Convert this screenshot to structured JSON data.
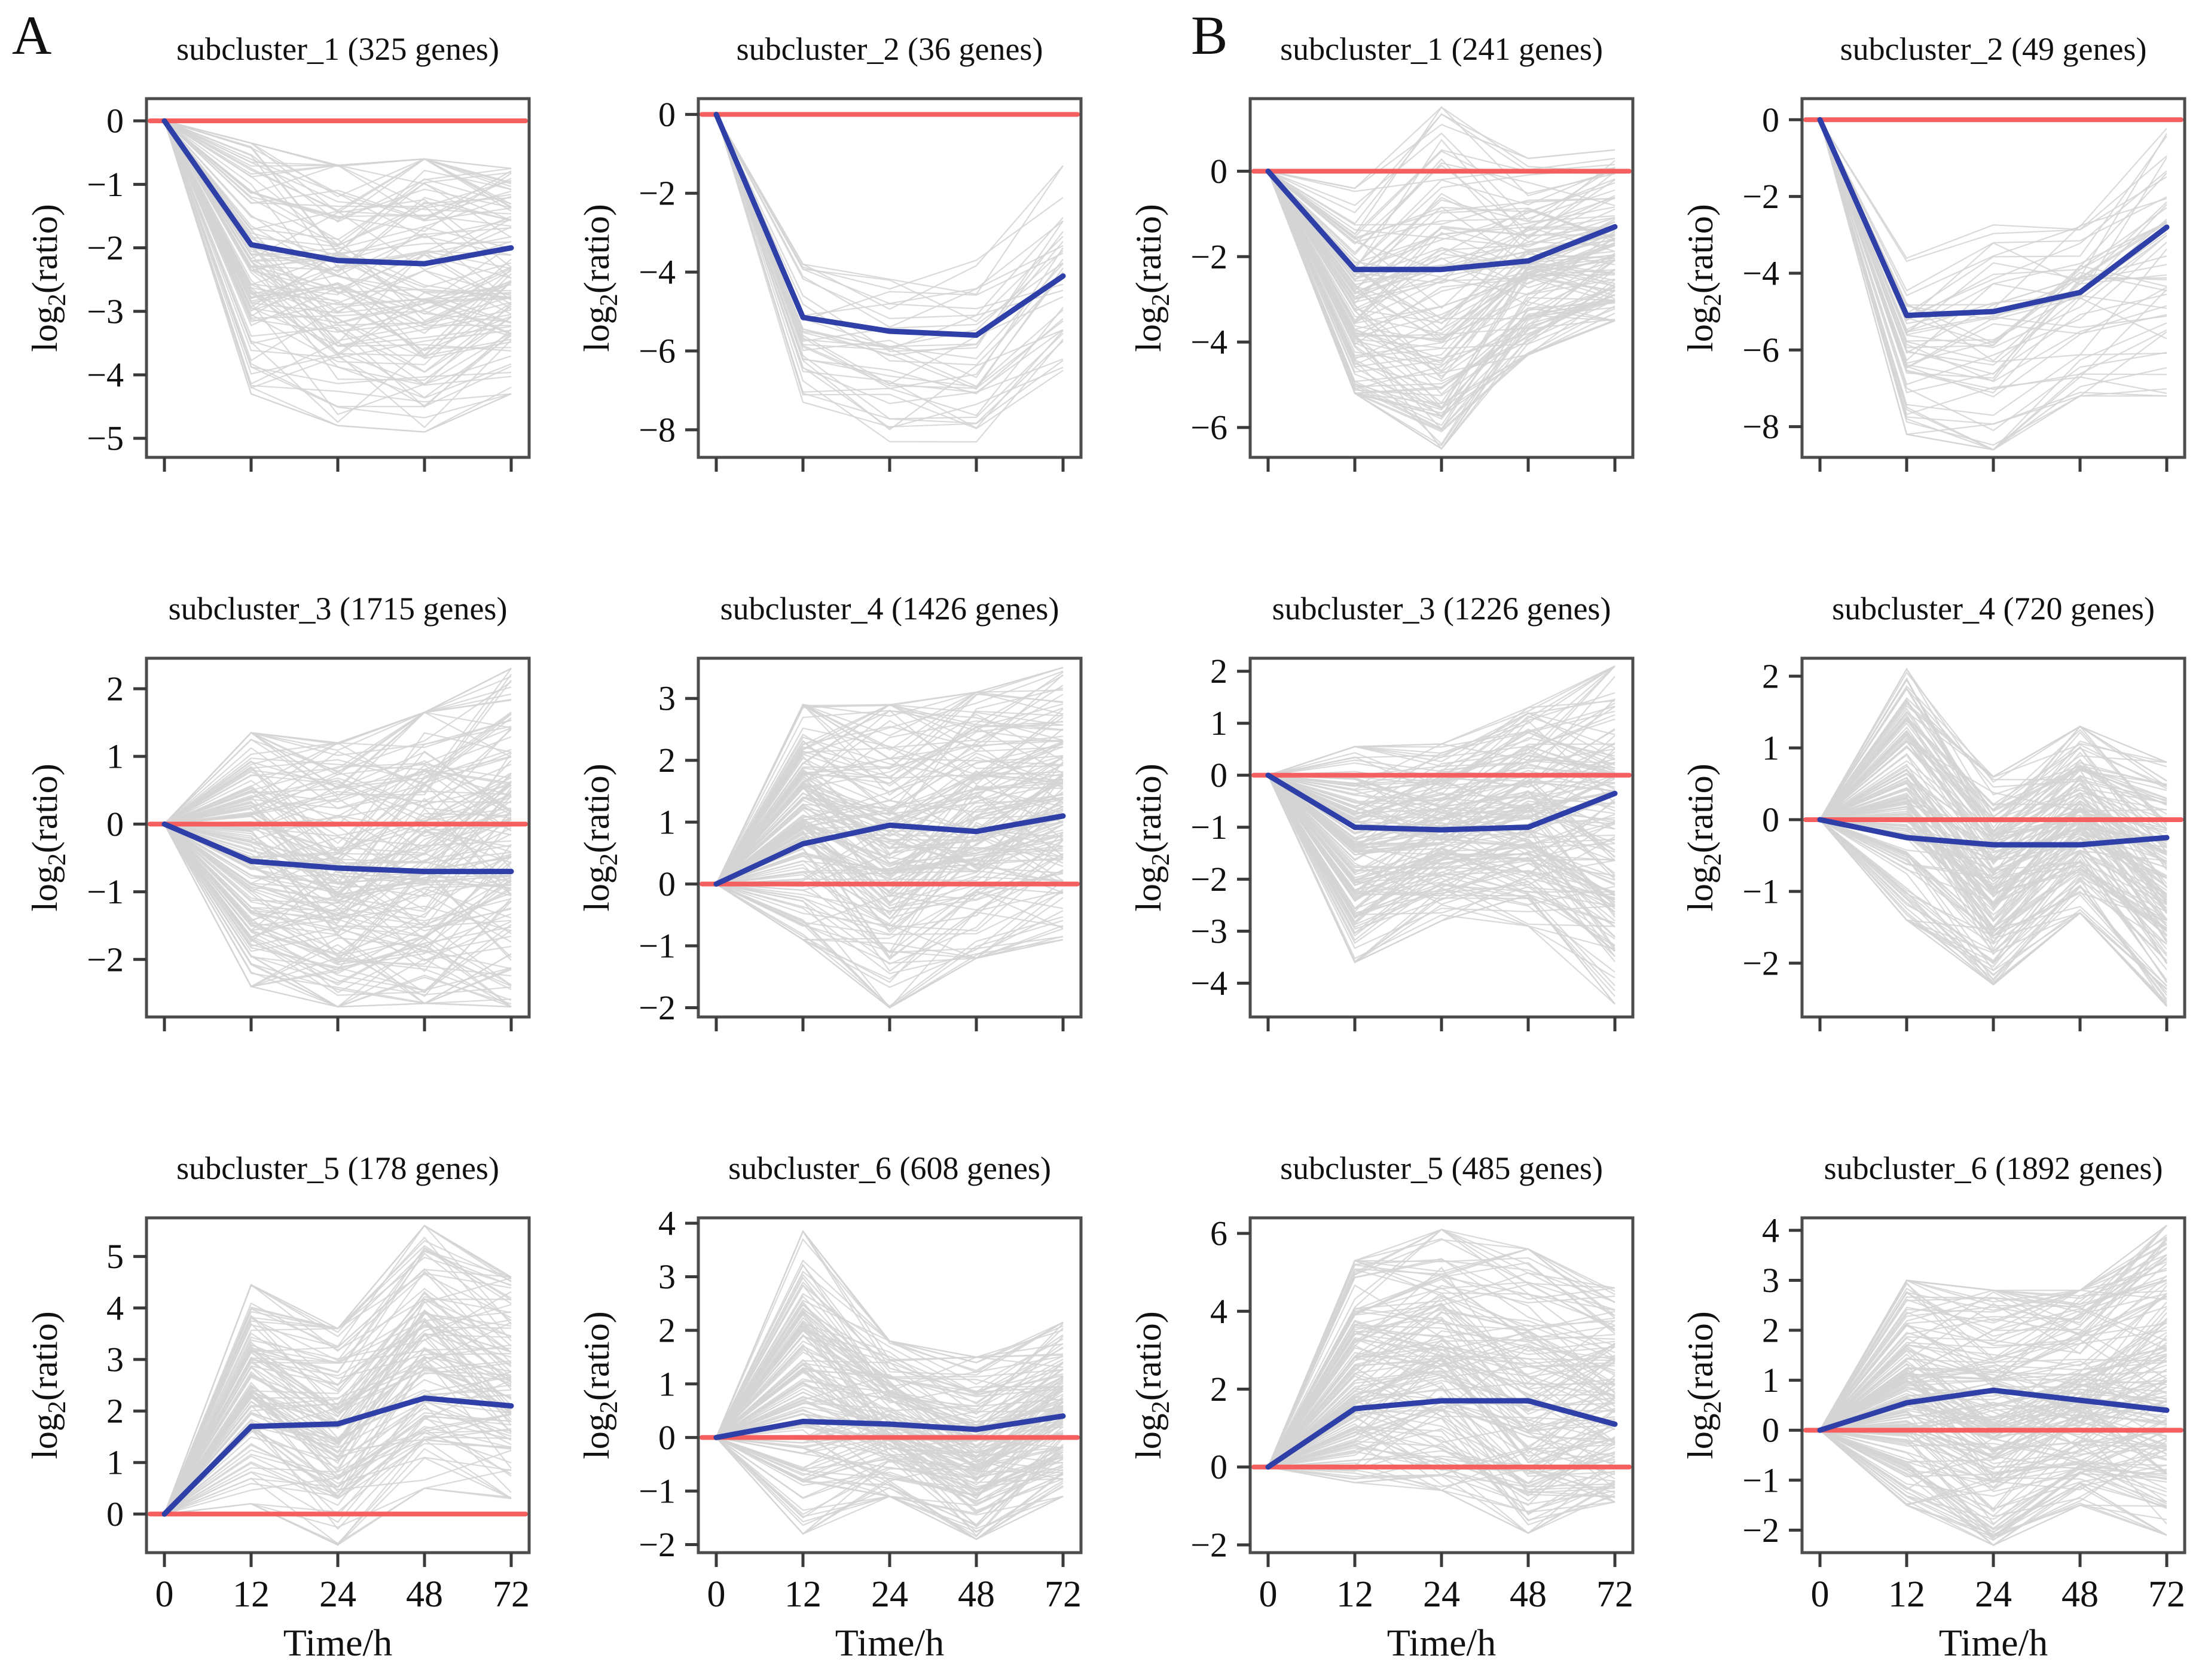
{
  "figure": {
    "panel_a_label": "A",
    "panel_b_label": "B",
    "xlabel": "Time/h",
    "ylabel": {
      "pre": "log",
      "sub": "2",
      "post": "(ratio)"
    },
    "x_ticks": [
      0,
      12,
      24,
      48,
      72
    ],
    "colors": {
      "mean_line": "#2e3fa8",
      "baseline": "#f65f5f",
      "gene_lines": "#d4d4d4",
      "box_border": "#4d4d4d",
      "tick": "#3a3a3a",
      "text": "#111111"
    }
  },
  "chart_data": [
    {
      "type": "line",
      "panel": "A",
      "subcluster": "subcluster_1",
      "gene_count": 325,
      "title": "subcluster_1 (325 genes)",
      "x": [
        0,
        12,
        24,
        48,
        72
      ],
      "xlabel": "Time/h",
      "ylabel": "log2(ratio)",
      "yticks": [
        0,
        -1,
        -2,
        -3,
        -4,
        -5
      ],
      "ylim": [
        -5.3,
        0.35
      ],
      "series": [
        {
          "name": "cluster mean",
          "values": [
            0,
            -1.95,
            -2.2,
            -2.25,
            -2.0
          ]
        },
        {
          "name": "baseline",
          "values": [
            0,
            0,
            0,
            0,
            0
          ]
        }
      ],
      "env_min": [
        0,
        -4.3,
        -4.8,
        -4.9,
        -4.3
      ],
      "env_max": [
        0,
        -0.35,
        -0.7,
        -0.6,
        -0.75
      ],
      "n_lines": 110
    },
    {
      "type": "line",
      "panel": "A",
      "subcluster": "subcluster_2",
      "gene_count": 36,
      "title": "subcluster_2 (36 genes)",
      "x": [
        0,
        12,
        24,
        48,
        72
      ],
      "xlabel": "Time/h",
      "ylabel": "log2(ratio)",
      "yticks": [
        0,
        -2,
        -4,
        -6,
        -8
      ],
      "ylim": [
        -8.7,
        0.4
      ],
      "series": [
        {
          "name": "cluster mean",
          "values": [
            0,
            -5.15,
            -5.5,
            -5.6,
            -4.1
          ]
        },
        {
          "name": "baseline",
          "values": [
            0,
            0,
            0,
            0,
            0
          ]
        }
      ],
      "env_min": [
        0,
        -7.3,
        -8.3,
        -8.4,
        -6.9
      ],
      "env_max": [
        0,
        -3.8,
        -3.9,
        -3.7,
        -1.3
      ],
      "n_lines": 36
    },
    {
      "type": "line",
      "panel": "A",
      "subcluster": "subcluster_3",
      "gene_count": 1715,
      "title": "subcluster_3 (1715 genes)",
      "x": [
        0,
        12,
        24,
        48,
        72
      ],
      "xlabel": "Time/h",
      "ylabel": "log2(ratio)",
      "yticks": [
        2,
        1,
        0,
        -1,
        -2
      ],
      "ylim": [
        -2.85,
        2.45
      ],
      "series": [
        {
          "name": "cluster mean",
          "values": [
            0,
            -0.55,
            -0.65,
            -0.7,
            -0.7
          ]
        },
        {
          "name": "baseline",
          "values": [
            0,
            0,
            0,
            0,
            0
          ]
        }
      ],
      "env_min": [
        0,
        -2.4,
        -2.7,
        -2.65,
        -2.7
      ],
      "env_max": [
        0,
        1.35,
        1.2,
        1.65,
        2.3
      ],
      "n_lines": 160
    },
    {
      "type": "line",
      "panel": "A",
      "subcluster": "subcluster_4",
      "gene_count": 1426,
      "title": "subcluster_4 (1426 genes)",
      "x": [
        0,
        12,
        24,
        48,
        72
      ],
      "xlabel": "Time/h",
      "ylabel": "log2(ratio)",
      "yticks": [
        3,
        2,
        1,
        0,
        -1,
        -2
      ],
      "ylim": [
        -2.15,
        3.65
      ],
      "series": [
        {
          "name": "cluster mean",
          "values": [
            0,
            0.65,
            0.95,
            0.85,
            1.1
          ]
        },
        {
          "name": "baseline",
          "values": [
            0,
            0,
            0,
            0,
            0
          ]
        }
      ],
      "env_min": [
        0,
        -0.9,
        -2.0,
        -1.2,
        -0.9
      ],
      "env_max": [
        0,
        2.9,
        2.9,
        3.1,
        3.5
      ],
      "n_lines": 160
    },
    {
      "type": "line",
      "panel": "A",
      "subcluster": "subcluster_5",
      "gene_count": 178,
      "title": "subcluster_5 (178 genes)",
      "x": [
        0,
        12,
        24,
        48,
        72
      ],
      "xlabel": "Time/h",
      "ylabel": "log2(ratio)",
      "yticks": [
        5,
        4,
        3,
        2,
        1,
        0
      ],
      "ylim": [
        -0.75,
        5.75
      ],
      "series": [
        {
          "name": "cluster mean",
          "values": [
            0,
            1.7,
            1.75,
            2.25,
            2.1
          ]
        },
        {
          "name": "baseline",
          "values": [
            0,
            0,
            0,
            0,
            0
          ]
        }
      ],
      "env_min": [
        0,
        0.2,
        -0.6,
        0.5,
        0.3
      ],
      "env_max": [
        0,
        4.45,
        3.6,
        5.6,
        4.6
      ],
      "n_lines": 110
    },
    {
      "type": "line",
      "panel": "A",
      "subcluster": "subcluster_6",
      "gene_count": 608,
      "title": "subcluster_6 (608 genes)",
      "x": [
        0,
        12,
        24,
        48,
        72
      ],
      "xlabel": "Time/h",
      "ylabel": "log2(ratio)",
      "yticks": [
        4,
        3,
        2,
        1,
        0,
        -1,
        -2
      ],
      "ylim": [
        -2.15,
        4.1
      ],
      "series": [
        {
          "name": "cluster mean",
          "values": [
            0,
            0.3,
            0.25,
            0.15,
            0.4
          ]
        },
        {
          "name": "baseline",
          "values": [
            0,
            0,
            0,
            0,
            0
          ]
        }
      ],
      "env_min": [
        0,
        -1.8,
        -1.1,
        -1.9,
        -1.1
      ],
      "env_max": [
        0,
        3.85,
        1.8,
        1.5,
        2.15
      ],
      "n_lines": 140
    },
    {
      "type": "line",
      "panel": "B",
      "subcluster": "subcluster_1",
      "gene_count": 241,
      "title": "subcluster_1 (241 genes)",
      "x": [
        0,
        12,
        24,
        48,
        72
      ],
      "xlabel": "Time/h",
      "ylabel": "log2(ratio)",
      "yticks": [
        0,
        -2,
        -4,
        -6
      ],
      "ylim": [
        -6.7,
        1.7
      ],
      "series": [
        {
          "name": "cluster mean",
          "values": [
            0,
            -2.3,
            -2.3,
            -2.1,
            -1.3
          ]
        },
        {
          "name": "baseline",
          "values": [
            0,
            0,
            0,
            0,
            0
          ]
        }
      ],
      "env_min": [
        0,
        -5.2,
        -6.5,
        -4.3,
        -3.5
      ],
      "env_max": [
        0,
        -0.4,
        1.5,
        0.3,
        0.5
      ],
      "n_lines": 120
    },
    {
      "type": "line",
      "panel": "B",
      "subcluster": "subcluster_2",
      "gene_count": 49,
      "title": "subcluster_2 (49 genes)",
      "x": [
        0,
        12,
        24,
        48,
        72
      ],
      "xlabel": "Time/h",
      "ylabel": "log2(ratio)",
      "yticks": [
        0,
        -2,
        -4,
        -6,
        -8
      ],
      "ylim": [
        -8.8,
        0.55
      ],
      "series": [
        {
          "name": "cluster mean",
          "values": [
            0,
            -5.1,
            -5.0,
            -4.5,
            -2.8
          ]
        },
        {
          "name": "baseline",
          "values": [
            0,
            0,
            0,
            0,
            0
          ]
        }
      ],
      "env_min": [
        0,
        -8.2,
        -8.6,
        -7.2,
        -7.2
      ],
      "env_max": [
        0,
        -3.6,
        -2.4,
        -2.2,
        0.4
      ],
      "n_lines": 49
    },
    {
      "type": "line",
      "panel": "B",
      "subcluster": "subcluster_3",
      "gene_count": 1226,
      "title": "subcluster_3 (1226 genes)",
      "x": [
        0,
        12,
        24,
        48,
        72
      ],
      "xlabel": "Time/h",
      "ylabel": "log2(ratio)",
      "yticks": [
        2,
        1,
        0,
        -1,
        -2,
        -3,
        -4
      ],
      "ylim": [
        -4.65,
        2.25
      ],
      "series": [
        {
          "name": "cluster mean",
          "values": [
            0,
            -1.0,
            -1.05,
            -1.0,
            -0.35
          ]
        },
        {
          "name": "baseline",
          "values": [
            0,
            0,
            0,
            0,
            0
          ]
        }
      ],
      "env_min": [
        0,
        -3.6,
        -2.8,
        -2.9,
        -4.4
      ],
      "env_max": [
        0,
        0.55,
        0.6,
        1.3,
        2.1
      ],
      "n_lines": 160
    },
    {
      "type": "line",
      "panel": "B",
      "subcluster": "subcluster_4",
      "gene_count": 720,
      "title": "subcluster_4 (720 genes)",
      "x": [
        0,
        12,
        24,
        48,
        72
      ],
      "xlabel": "Time/h",
      "ylabel": "log2(ratio)",
      "yticks": [
        2,
        1,
        0,
        -1,
        -2
      ],
      "ylim": [
        -2.75,
        2.25
      ],
      "series": [
        {
          "name": "cluster mean",
          "values": [
            0,
            -0.25,
            -0.35,
            -0.35,
            -0.25
          ]
        },
        {
          "name": "baseline",
          "values": [
            0,
            0,
            0,
            0,
            0
          ]
        }
      ],
      "env_min": [
        0,
        -1.4,
        -2.3,
        -1.3,
        -2.6
      ],
      "env_max": [
        0,
        2.1,
        0.6,
        1.3,
        0.8
      ],
      "n_lines": 150
    },
    {
      "type": "line",
      "panel": "B",
      "subcluster": "subcluster_5",
      "gene_count": 485,
      "title": "subcluster_5 (485 genes)",
      "x": [
        0,
        12,
        24,
        48,
        72
      ],
      "xlabel": "Time/h",
      "ylabel": "log2(ratio)",
      "yticks": [
        6,
        4,
        2,
        0,
        -2
      ],
      "ylim": [
        -2.2,
        6.4
      ],
      "series": [
        {
          "name": "cluster mean",
          "values": [
            0,
            1.5,
            1.7,
            1.7,
            1.1
          ]
        },
        {
          "name": "baseline",
          "values": [
            0,
            0,
            0,
            0,
            0
          ]
        }
      ],
      "env_min": [
        0,
        -0.4,
        -0.6,
        -1.7,
        -0.9
      ],
      "env_max": [
        0,
        5.3,
        6.1,
        5.6,
        4.6
      ],
      "n_lines": 140
    },
    {
      "type": "line",
      "panel": "B",
      "subcluster": "subcluster_6",
      "gene_count": 1892,
      "title": "subcluster_6 (1892 genes)",
      "x": [
        0,
        12,
        24,
        48,
        72
      ],
      "xlabel": "Time/h",
      "ylabel": "log2(ratio)",
      "yticks": [
        4,
        3,
        2,
        1,
        0,
        -1,
        -2
      ],
      "ylim": [
        -2.45,
        4.25
      ],
      "series": [
        {
          "name": "cluster mean",
          "values": [
            0,
            0.55,
            0.8,
            0.6,
            0.4
          ]
        },
        {
          "name": "baseline",
          "values": [
            0,
            0,
            0,
            0,
            0
          ]
        }
      ],
      "env_min": [
        0,
        -1.5,
        -2.3,
        -1.5,
        -2.1
      ],
      "env_max": [
        0,
        3.0,
        2.8,
        2.8,
        4.1
      ],
      "n_lines": 170
    }
  ]
}
